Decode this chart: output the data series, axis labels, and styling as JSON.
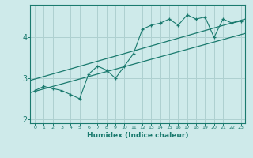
{
  "title": "",
  "xlabel": "Humidex (Indice chaleur)",
  "ylabel": "",
  "bg_color": "#ceeaea",
  "line_color": "#1a7a6e",
  "grid_color": "#aed0d0",
  "x_data": [
    0,
    1,
    2,
    3,
    4,
    5,
    6,
    7,
    8,
    9,
    10,
    11,
    12,
    13,
    14,
    15,
    16,
    17,
    18,
    19,
    20,
    21,
    22,
    23
  ],
  "y_data": [
    2.7,
    2.8,
    2.75,
    2.7,
    2.6,
    2.5,
    3.1,
    3.3,
    3.2,
    3.0,
    3.3,
    3.6,
    4.2,
    4.3,
    4.35,
    4.45,
    4.3,
    4.55,
    4.45,
    4.5,
    4.0,
    4.45,
    4.35,
    4.4
  ],
  "ylim": [
    1.9,
    4.8
  ],
  "xlim": [
    -0.5,
    23.5
  ],
  "yticks": [
    2,
    3,
    4
  ],
  "xticks": [
    0,
    1,
    2,
    3,
    4,
    5,
    6,
    7,
    8,
    9,
    10,
    11,
    12,
    13,
    14,
    15,
    16,
    17,
    18,
    19,
    20,
    21,
    22,
    23
  ],
  "y_lower_start": 2.65,
  "y_lower_end": 4.1,
  "y_upper_start": 2.95,
  "y_upper_end": 4.45
}
